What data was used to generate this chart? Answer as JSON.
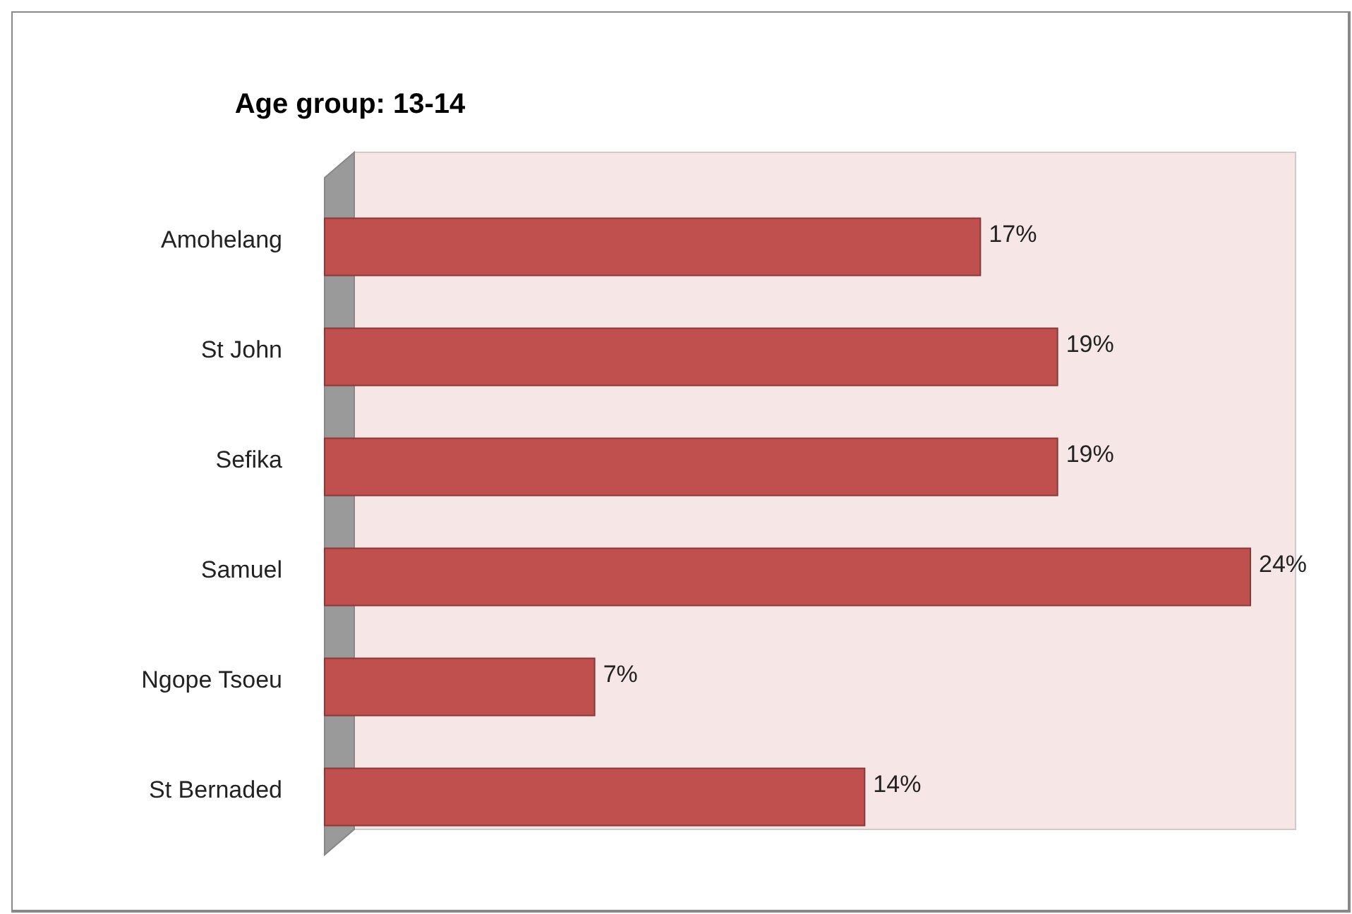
{
  "chart_data": {
    "type": "bar",
    "orientation": "horizontal",
    "title": "Age group: 13-14",
    "categories": [
      "Amohelang",
      "St John",
      "Sefika",
      "Samuel",
      "Ngope Tsoeu",
      "St Bernaded"
    ],
    "values": [
      17,
      19,
      19,
      24,
      7,
      14
    ],
    "value_labels": [
      "17%",
      "19%",
      "19%",
      "24%",
      "7%",
      "14%"
    ],
    "color": "#c0504d"
  }
}
